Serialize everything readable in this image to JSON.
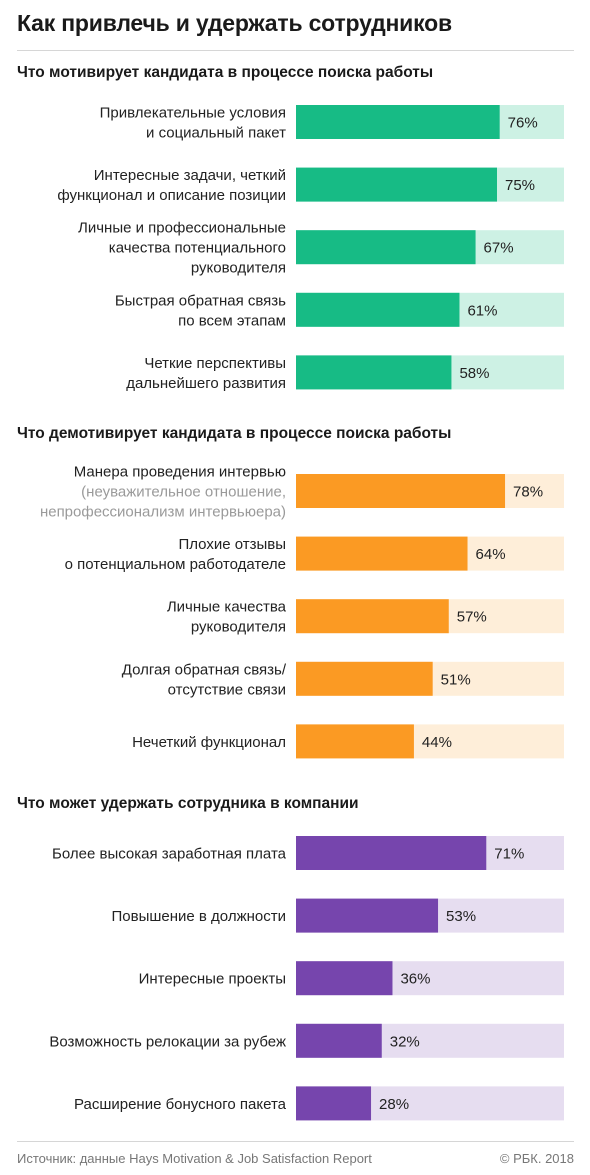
{
  "title": "Как привлечь и удержать сотрудников",
  "source": "Источник: данные Hays Motivation & Job Satisfaction Report",
  "copyright": "© РБК. 2018",
  "chart_data": [
    {
      "type": "bar",
      "orientation": "horizontal",
      "title": "Что мотивирует кандидата в процессе поиска работы",
      "unit": "%",
      "xlim": [
        0,
        100
      ],
      "bar_color": "#17bb85",
      "track_color": "#cdf1e4",
      "categories": [
        {
          "lines": [
            "Привлекательные условия",
            "и социальный пакет"
          ]
        },
        {
          "lines": [
            "Интересные задачи, четкий",
            "функционал и описание позиции"
          ]
        },
        {
          "lines": [
            "Личные и профессиональные",
            "качества потенциального",
            "руководителя"
          ]
        },
        {
          "lines": [
            "Быстрая обратная связь",
            "по всем этапам"
          ]
        },
        {
          "lines": [
            "Четкие перспективы",
            "дальнейшего развития"
          ]
        }
      ],
      "values": [
        76,
        75,
        67,
        61,
        58
      ],
      "value_labels": [
        "76%",
        "75%",
        "67%",
        "61%",
        "58%"
      ]
    },
    {
      "type": "bar",
      "orientation": "horizontal",
      "title": "Что демотивирует кандидата в процессе поиска работы",
      "unit": "%",
      "xlim": [
        0,
        100
      ],
      "bar_color": "#fb9a23",
      "track_color": "#feeed9",
      "categories": [
        {
          "lines": [
            "Манера проведения интервью"
          ],
          "note_lines": [
            "(неуважительное отношение,",
            "непрофессионализм интервьюера)"
          ]
        },
        {
          "lines": [
            "Плохие отзывы",
            "о потенциальном работодателе"
          ]
        },
        {
          "lines": [
            "Личные качества",
            "руководителя"
          ]
        },
        {
          "lines": [
            "Долгая обратная связь/",
            "отсутствие связи"
          ]
        },
        {
          "lines": [
            "Нечеткий функционал"
          ]
        }
      ],
      "values": [
        78,
        64,
        57,
        51,
        44
      ],
      "value_labels": [
        "78%",
        "64%",
        "57%",
        "51%",
        "44%"
      ]
    },
    {
      "type": "bar",
      "orientation": "horizontal",
      "title": "Что может удержать сотрудника в компании",
      "unit": "%",
      "xlim": [
        0,
        100
      ],
      "bar_color": "#7645ad",
      "track_color": "#e6ddf0",
      "categories": [
        {
          "lines": [
            "Более высокая заработная плата"
          ]
        },
        {
          "lines": [
            "Повышение в должности"
          ]
        },
        {
          "lines": [
            "Интересные проекты"
          ]
        },
        {
          "lines": [
            "Возможность релокации за рубеж"
          ]
        },
        {
          "lines": [
            "Расширение бонусного пакета"
          ]
        }
      ],
      "values": [
        71,
        53,
        36,
        32,
        28
      ],
      "value_labels": [
        "71%",
        "53%",
        "36%",
        "32%",
        "28%"
      ]
    }
  ]
}
